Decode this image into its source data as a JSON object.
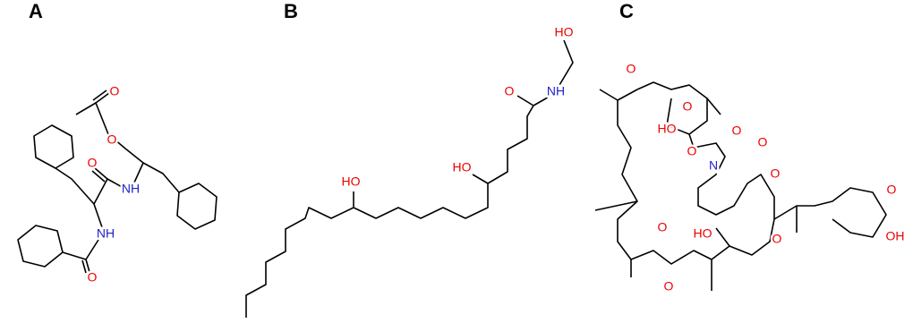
{
  "panels": [
    {
      "label": "A",
      "atoms": [
        "O",
        "O",
        "O",
        "NH",
        "NH",
        "O"
      ]
    },
    {
      "label": "B",
      "atoms": [
        "HO",
        "HO",
        "O",
        "NH",
        "HO"
      ]
    },
    {
      "label": "C",
      "atoms": [
        "O",
        "O",
        "HO",
        "O",
        "O",
        "N",
        "O",
        "O",
        "O",
        "HO",
        "O",
        "O",
        "OH",
        "O"
      ]
    }
  ]
}
